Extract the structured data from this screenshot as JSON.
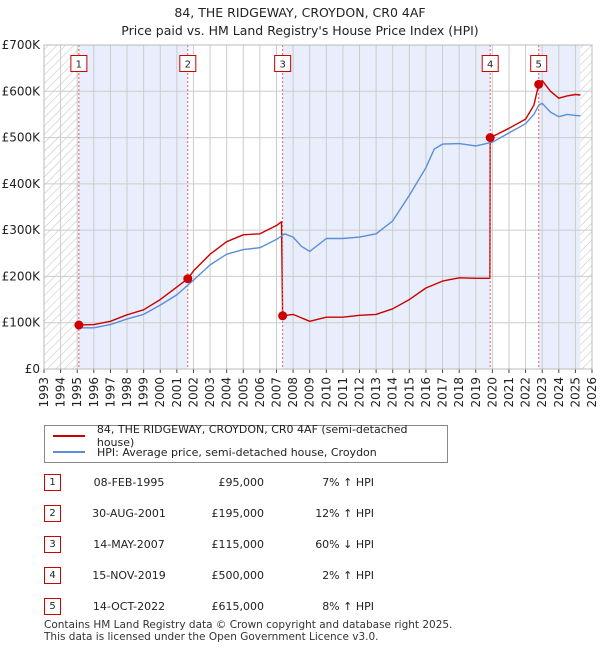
{
  "chart_data": {
    "type": "line",
    "title": "84, THE RIDGEWAY, CROYDON, CR0 4AF",
    "subtitle": "Price paid vs. HM Land Registry's House Price Index (HPI)",
    "xlim": [
      1993,
      2026
    ],
    "ylim": [
      0,
      700000
    ],
    "x_ticks": [
      "1993",
      "1994",
      "1995",
      "1996",
      "1997",
      "1998",
      "1999",
      "2000",
      "2001",
      "2002",
      "2003",
      "2004",
      "2005",
      "2006",
      "2007",
      "2008",
      "2009",
      "2010",
      "2011",
      "2012",
      "2013",
      "2014",
      "2015",
      "2016",
      "2017",
      "2018",
      "2019",
      "2020",
      "2021",
      "2022",
      "2023",
      "2024",
      "2025",
      "2026"
    ],
    "y_ticks": [
      {
        "value": 0,
        "label": "£0"
      },
      {
        "value": 100000,
        "label": "£100K"
      },
      {
        "value": 200000,
        "label": "£200K"
      },
      {
        "value": 300000,
        "label": "£300K"
      },
      {
        "value": 400000,
        "label": "£400K"
      },
      {
        "value": 500000,
        "label": "£500K"
      },
      {
        "value": 600000,
        "label": "£600K"
      },
      {
        "value": 700000,
        "label": "£700K"
      }
    ],
    "hatched_ranges": [
      [
        1993,
        1995.1
      ],
      [
        2025.3,
        2026
      ]
    ],
    "shaded_ranges": [
      [
        1995.1,
        2001.66
      ],
      [
        2007.37,
        2019.87
      ],
      [
        2022.79,
        2025.3
      ]
    ],
    "series": [
      {
        "name": "84, THE RIDGEWAY, CROYDON, CR0 4AF (semi-detached house)",
        "color": "#cc0000",
        "points": [
          [
            1995.1,
            95000
          ],
          [
            1996,
            96000
          ],
          [
            1997,
            103000
          ],
          [
            1998,
            117000
          ],
          [
            1999,
            128000
          ],
          [
            2000,
            150000
          ],
          [
            2001,
            177000
          ],
          [
            2001.66,
            195000
          ],
          [
            2002,
            212000
          ],
          [
            2003,
            248000
          ],
          [
            2004,
            275000
          ],
          [
            2005,
            290000
          ],
          [
            2006,
            292000
          ],
          [
            2007,
            310000
          ],
          [
            2007.3,
            318000
          ],
          [
            2007.37,
            115000
          ],
          [
            2008,
            118000
          ],
          [
            2009,
            103000
          ],
          [
            2010,
            112000
          ],
          [
            2011,
            112000
          ],
          [
            2012,
            116000
          ],
          [
            2013,
            118000
          ],
          [
            2014,
            130000
          ],
          [
            2015,
            150000
          ],
          [
            2016,
            175000
          ],
          [
            2017,
            190000
          ],
          [
            2018,
            197000
          ],
          [
            2019,
            196000
          ],
          [
            2019.85,
            196000
          ],
          [
            2019.87,
            500000
          ],
          [
            2020,
            502000
          ],
          [
            2021,
            520000
          ],
          [
            2022,
            540000
          ],
          [
            2022.5,
            570000
          ],
          [
            2022.79,
            615000
          ],
          [
            2023,
            623000
          ],
          [
            2023.5,
            600000
          ],
          [
            2024,
            585000
          ],
          [
            2024.5,
            590000
          ],
          [
            2025,
            593000
          ],
          [
            2025.3,
            592000
          ]
        ]
      },
      {
        "name": "HPI: Average price, semi-detached house, Croydon",
        "color": "#5b8ed6",
        "points": [
          [
            1995,
            89000
          ],
          [
            1996,
            89000
          ],
          [
            1997,
            96000
          ],
          [
            1998,
            108000
          ],
          [
            1999,
            118000
          ],
          [
            2000,
            138000
          ],
          [
            2001,
            160000
          ],
          [
            2002,
            192000
          ],
          [
            2003,
            225000
          ],
          [
            2004,
            248000
          ],
          [
            2005,
            258000
          ],
          [
            2006,
            262000
          ],
          [
            2007,
            280000
          ],
          [
            2007.5,
            292000
          ],
          [
            2008,
            285000
          ],
          [
            2008.5,
            265000
          ],
          [
            2009,
            254000
          ],
          [
            2009.5,
            268000
          ],
          [
            2010,
            282000
          ],
          [
            2011,
            282000
          ],
          [
            2012,
            285000
          ],
          [
            2013,
            292000
          ],
          [
            2014,
            320000
          ],
          [
            2015,
            375000
          ],
          [
            2016,
            435000
          ],
          [
            2016.5,
            475000
          ],
          [
            2017,
            486000
          ],
          [
            2018,
            487000
          ],
          [
            2019,
            482000
          ],
          [
            2020,
            490000
          ],
          [
            2021,
            510000
          ],
          [
            2022,
            530000
          ],
          [
            2022.5,
            550000
          ],
          [
            2022.79,
            570000
          ],
          [
            2023,
            574000
          ],
          [
            2023.5,
            555000
          ],
          [
            2024,
            545000
          ],
          [
            2024.5,
            550000
          ],
          [
            2025,
            548000
          ],
          [
            2025.3,
            547000
          ]
        ]
      }
    ],
    "sales": [
      {
        "num": "1",
        "x": 1995.1,
        "price": 95000
      },
      {
        "num": "2",
        "x": 2001.66,
        "price": 195000
      },
      {
        "num": "3",
        "x": 2007.37,
        "price": 115000
      },
      {
        "num": "4",
        "x": 2019.87,
        "price": 500000
      },
      {
        "num": "5",
        "x": 2022.79,
        "price": 615000
      }
    ],
    "sale_label_value": 660000
  },
  "legend": {
    "red_label": "84, THE RIDGEWAY, CROYDON, CR0 4AF (semi-detached house)",
    "blue_label": "HPI: Average price, semi-detached house, Croydon"
  },
  "sales_table": [
    {
      "num": "1",
      "date": "08-FEB-1995",
      "price": "£95,000",
      "hpi": "7% ↑ HPI"
    },
    {
      "num": "2",
      "date": "30-AUG-2001",
      "price": "£195,000",
      "hpi": "12% ↑ HPI"
    },
    {
      "num": "3",
      "date": "14-MAY-2007",
      "price": "£115,000",
      "hpi": "60% ↓ HPI"
    },
    {
      "num": "4",
      "date": "15-NOV-2019",
      "price": "£500,000",
      "hpi": "2% ↑ HPI"
    },
    {
      "num": "5",
      "date": "14-OCT-2022",
      "price": "£615,000",
      "hpi": "8% ↑ HPI"
    }
  ],
  "footer": {
    "line1": "Contains HM Land Registry data © Crown copyright and database right 2025.",
    "line2": "This data is licensed under the Open Government Licence v3.0."
  },
  "colors": {
    "red": "#cc0000",
    "blue": "#5b8ed6",
    "shade": "#e8eefb",
    "grid": "#cccccc"
  }
}
